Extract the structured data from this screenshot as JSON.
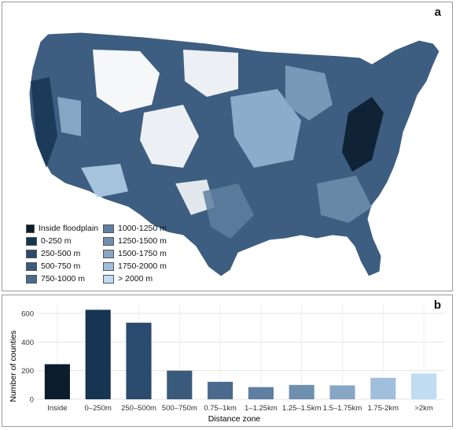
{
  "panel_a": {
    "letter": "a",
    "legend": [
      {
        "label": "Inside floodplain",
        "color": "#0b1c2c"
      },
      {
        "label": "0-250 m",
        "color": "#163553"
      },
      {
        "label": "250-500 m",
        "color": "#2a4b6d"
      },
      {
        "label": "500-750 m",
        "color": "#3a5a7c"
      },
      {
        "label": "750-1000 m",
        "color": "#4a6b8d"
      },
      {
        "label": "1000-1250 m",
        "color": "#5e7fa0"
      },
      {
        "label": "1250-1500 m",
        "color": "#6f8fae"
      },
      {
        "label": "1500-1750 m",
        "color": "#86a6c4"
      },
      {
        "label": "1750-2000 m",
        "color": "#9fbfdc"
      },
      {
        "label": "> 2000 m",
        "color": "#bfdcf2"
      }
    ]
  },
  "panel_b": {
    "letter": "b"
  },
  "chart_data": {
    "type": "bar",
    "xlabel": "Distance zone",
    "ylabel": "Number of counties",
    "ylim": [
      0,
      660
    ],
    "yticks": [
      0,
      200,
      400,
      600
    ],
    "grid": true,
    "categories": [
      "Inside",
      "0–250m",
      "250–500m",
      "500–750m",
      "0.75–1km",
      "1–1.25km",
      "1.25–1.5km",
      "1.5–1.75km",
      "1.75-2km",
      ">2km"
    ],
    "values": [
      245,
      625,
      535,
      200,
      122,
      85,
      100,
      97,
      150,
      180
    ],
    "colors": [
      "#0b1c2c",
      "#163553",
      "#2a4b6d",
      "#3a5a7c",
      "#4a6b8d",
      "#5e7fa0",
      "#6f8fae",
      "#86a6c4",
      "#9fbfdc",
      "#bfdcf2"
    ]
  }
}
